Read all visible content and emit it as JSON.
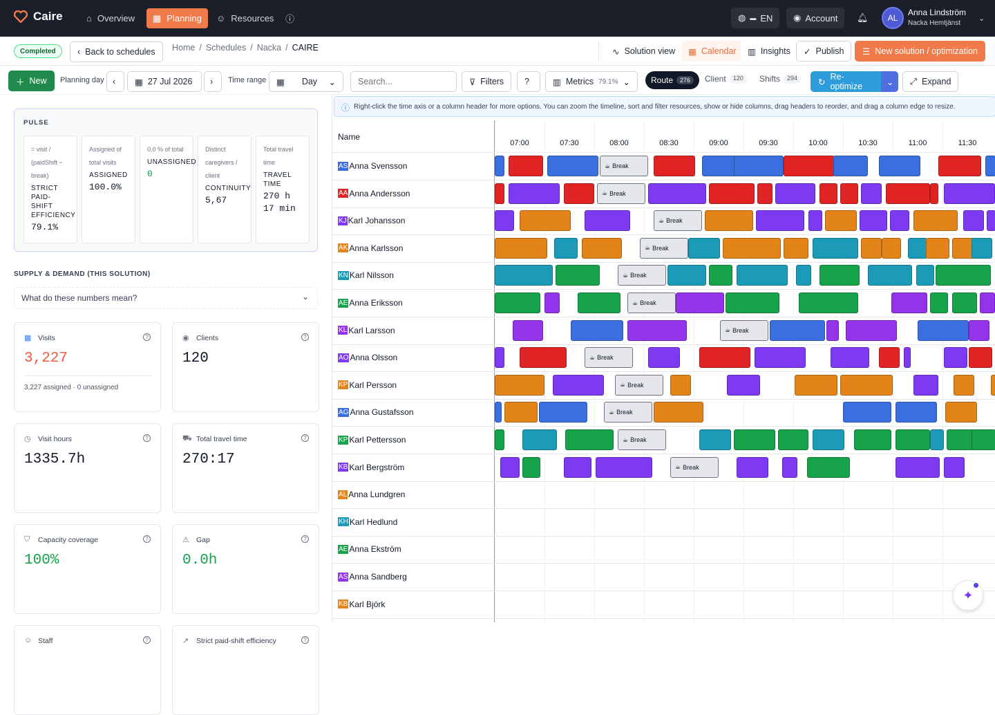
{
  "app": {
    "name": "Caire"
  },
  "nav": {
    "overview": "Overview",
    "planning": "Planning",
    "resources": "Resources"
  },
  "topbar": {
    "language": "EN",
    "account": "Account",
    "user_initials": "AL",
    "user_name": "Anna Lindström",
    "user_org": "Nacka Hemtjänst"
  },
  "header": {
    "status": "Completed",
    "back": "Back to schedules",
    "crumbs": [
      "Home",
      "Schedules",
      "Nacka",
      "CAIRE"
    ],
    "solution_view": "Solution view",
    "calendar": "Calendar",
    "insights": "Insights",
    "publish": "Publish",
    "new_solution": "New solution / optimization"
  },
  "toolbar": {
    "new": "New",
    "planning_day": "Planning day",
    "date": "27 Jul 2026",
    "time_range": "Time range",
    "range_value": "Day",
    "search_placeholder": "Search...",
    "filters": "Filters",
    "metrics": "Metrics",
    "metrics_pct": "79.1%",
    "route": "Route",
    "route_count": "276",
    "client": "Client",
    "client_count": "120",
    "shifts": "Shifts",
    "shifts_count": "294",
    "reoptimize": "Re-optimize",
    "expand": "Expand"
  },
  "pulse": {
    "title": "PULSE",
    "cards": [
      {
        "desc": "= visit / (paidShift − break)",
        "key": "STRICT PAID-SHIFT EFFICIENCY",
        "value": "79.1%"
      },
      {
        "desc": "Assigned of total visits",
        "key": "ASSIGNED",
        "value": "100.0%"
      },
      {
        "desc": "0.0 % of total",
        "key": "UNASSIGNED",
        "value": "0"
      },
      {
        "desc": "Distinct caregivers / client",
        "key": "CONTINUITY",
        "value": "5,67"
      },
      {
        "desc": "Total travel time",
        "key": "TRAVEL TIME",
        "value": "270 h 17 min"
      }
    ]
  },
  "supply": {
    "title": "SUPPLY & DEMAND (THIS SOLUTION)",
    "explain": "What do these numbers mean?"
  },
  "cards": [
    {
      "title": "Visits",
      "value": "3,227",
      "sub": "3,227 assigned · 0 unassigned",
      "color": "#f05a3c"
    },
    {
      "title": "Clients",
      "value": "120",
      "sub": "",
      "color": "#111827"
    },
    {
      "title": "Visit hours",
      "value": "1335.7h",
      "sub": "",
      "color": "#111827"
    },
    {
      "title": "Total travel time",
      "value": "270:17",
      "sub": "",
      "color": "#111827"
    },
    {
      "title": "Capacity coverage",
      "value": "100%",
      "sub": "",
      "color": "#16a34a"
    },
    {
      "title": "Gap",
      "value": "0.0h",
      "sub": "",
      "color": "#16a34a"
    },
    {
      "title": "Staff",
      "value": "",
      "sub": "",
      "color": "#111827"
    },
    {
      "title": "Strict paid-shift efficiency",
      "value": "",
      "sub": "",
      "color": "#111827"
    }
  ],
  "timeline": {
    "info": "Right-click the time axis or a column header for more options. You can zoom the timeline, sort and filter resources, show or hide columns, drag headers to reorder, and drag a column edge to resize.",
    "name_header": "Name",
    "hours": [
      "07:00",
      "07:30",
      "08:00",
      "08:30",
      "09:00",
      "09:30",
      "10:00",
      "10:30",
      "11:00",
      "11:30"
    ],
    "break_label": "Break",
    "rows": [
      {
        "ini": "AS",
        "name": "Anna Svensson",
        "color": "#3b6fe0"
      },
      {
        "ini": "AA",
        "name": "Anna Andersson",
        "color": "#e02424"
      },
      {
        "ini": "KJ",
        "name": "Karl Johansson",
        "color": "#7e3af2"
      },
      {
        "ini": "AK",
        "name": "Anna Karlsson",
        "color": "#e3841a"
      },
      {
        "ini": "KN",
        "name": "Karl Nilsson",
        "color": "#1c9bb8"
      },
      {
        "ini": "AE",
        "name": "Anna Eriksson",
        "color": "#16a34a"
      },
      {
        "ini": "KL",
        "name": "Karl Larsson",
        "color": "#9333ea"
      },
      {
        "ini": "AO",
        "name": "Anna Olsson",
        "color": "#7e3af2"
      },
      {
        "ini": "KP",
        "name": "Karl Persson",
        "color": "#e3841a"
      },
      {
        "ini": "AG",
        "name": "Anna Gustafsson",
        "color": "#3b6fe0"
      },
      {
        "ini": "KP",
        "name": "Karl Pettersson",
        "color": "#16a34a"
      },
      {
        "ini": "KB",
        "name": "Karl Bergström",
        "color": "#7e3af2"
      },
      {
        "ini": "AL",
        "name": "Anna Lundgren",
        "color": "#e3841a"
      },
      {
        "ini": "KH",
        "name": "Karl Hedlund",
        "color": "#1c9bb8"
      },
      {
        "ini": "AE",
        "name": "Anna Ekström",
        "color": "#16a34a"
      },
      {
        "ini": "AS",
        "name": "Anna Sandberg",
        "color": "#9333ea"
      },
      {
        "ini": "KB",
        "name": "Karl Björk",
        "color": "#e3841a"
      }
    ]
  }
}
